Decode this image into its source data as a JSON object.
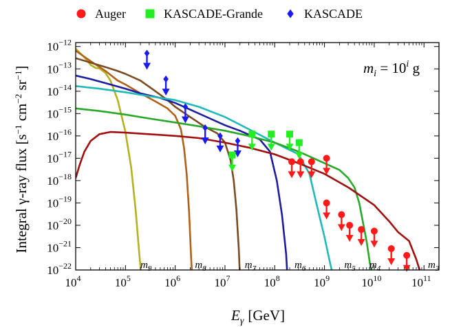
{
  "chart_data": {
    "type": "line",
    "title": "",
    "xlabel": "E_γ [GeV]",
    "xlabel_parts": {
      "symbol": "E",
      "sub": "γ",
      "unit": "[GeV]"
    },
    "ylabel": "Integral γ-ray flux [s−1 cm−2 sr−1]",
    "ylabel_parts": {
      "main": "Integral γ-ray flux [s",
      "e1": "−1",
      "mid1": " cm",
      "e2": "−2",
      "mid2": " sr",
      "e3": "−1",
      "end": "]"
    },
    "annotation": {
      "text": "m_i = 10^i g",
      "m": "m",
      "i": "i",
      "eq": " = 10",
      "exp": "i",
      "unit": " g"
    },
    "x_scale": "log",
    "y_scale": "log",
    "xlim": [
      10000,
      200000000000
    ],
    "ylim": [
      1e-22,
      1.5e-12
    ],
    "x_ticks": [
      {
        "value": 10000,
        "base": "10",
        "exp": "4"
      },
      {
        "value": 100000,
        "base": "10",
        "exp": "5"
      },
      {
        "value": 1000000,
        "base": "10",
        "exp": "6"
      },
      {
        "value": 10000000,
        "base": "10",
        "exp": "7"
      },
      {
        "value": 100000000,
        "base": "10",
        "exp": "8"
      },
      {
        "value": 1000000000,
        "base": "10",
        "exp": "9"
      },
      {
        "value": 10000000000,
        "base": "10",
        "exp": "10"
      },
      {
        "value": 100000000000,
        "base": "10",
        "exp": "11"
      }
    ],
    "y_ticks": [
      {
        "value": 1e-22,
        "base": "10",
        "exp": "−22"
      },
      {
        "value": 1e-21,
        "base": "10",
        "exp": "−21"
      },
      {
        "value": 1e-20,
        "base": "10",
        "exp": "−20"
      },
      {
        "value": 1e-19,
        "base": "10",
        "exp": "−19"
      },
      {
        "value": 1e-18,
        "base": "10",
        "exp": "−18"
      },
      {
        "value": 1e-17,
        "base": "10",
        "exp": "−17"
      },
      {
        "value": 1e-16,
        "base": "10",
        "exp": "−16"
      },
      {
        "value": 1e-15,
        "base": "10",
        "exp": "−15"
      },
      {
        "value": 1e-14,
        "base": "10",
        "exp": "−14"
      },
      {
        "value": 1e-13,
        "base": "10",
        "exp": "−13"
      },
      {
        "value": 1e-12,
        "base": "10",
        "exp": "−12"
      }
    ],
    "legend_placement": "top-center",
    "grid": false,
    "legend": [
      {
        "name": "Auger",
        "marker": "circle",
        "color": "#ff1a1a"
      },
      {
        "name": "KASCADE-Grande",
        "marker": "square",
        "color": "#22ee22"
      },
      {
        "name": "KASCADE",
        "marker": "diamond",
        "color": "#1a1aee"
      }
    ],
    "series": [
      {
        "label": "m9",
        "base": "m",
        "sub": "9",
        "color": "#b5b020",
        "label_at": 200000,
        "points": [
          [
            10000,
            8e-13
          ],
          [
            15000,
            3.3e-13
          ],
          [
            20000,
            1.5e-13
          ],
          [
            25000,
            1.1e-13
          ],
          [
            30000,
            1.05e-13
          ],
          [
            40000,
            6.5e-14
          ],
          [
            50000,
            3e-14
          ],
          [
            70000,
            4e-15
          ],
          [
            100000,
            1.5e-16
          ],
          [
            130000,
            4e-18
          ],
          [
            160000,
            5e-20
          ],
          [
            190000,
            5e-22
          ],
          [
            210000,
            5e-23
          ]
        ]
      },
      {
        "label": "m8",
        "base": "m",
        "sub": "8",
        "color": "#b06018",
        "label_at": 2500000,
        "points": [
          [
            10000,
            6.5e-13
          ],
          [
            20000,
            2.2e-13
          ],
          [
            40000,
            8e-14
          ],
          [
            70000,
            3e-14
          ],
          [
            100000,
            2e-14
          ],
          [
            200000,
            8e-15
          ],
          [
            400000,
            3.5e-15
          ],
          [
            700000,
            1.7e-15
          ],
          [
            1000000,
            8e-16
          ],
          [
            1300000,
            2e-16
          ],
          [
            1500000,
            3e-17
          ],
          [
            1700000,
            2e-18
          ],
          [
            1900000,
            4e-20
          ],
          [
            2100000,
            3e-22
          ],
          [
            2200000,
            5e-23
          ]
        ]
      },
      {
        "label": "m7",
        "base": "m",
        "sub": "7",
        "color": "#7a4a20",
        "label_at": 25000000,
        "points": [
          [
            10000,
            3e-13
          ],
          [
            20000,
            1.9e-13
          ],
          [
            40000,
            1.2e-13
          ],
          [
            70000,
            8e-14
          ],
          [
            100000,
            6e-14
          ],
          [
            200000,
            3e-14
          ],
          [
            400000,
            1e-14
          ],
          [
            700000,
            4e-15
          ],
          [
            1000000,
            2e-15
          ],
          [
            2000000,
            7e-16
          ],
          [
            4000000,
            2.5e-16
          ],
          [
            7000000,
            1.3e-16
          ],
          [
            10000000,
            5e-17
          ],
          [
            13000000,
            8e-18
          ],
          [
            15000000,
            1e-18
          ],
          [
            17000000,
            5e-20
          ],
          [
            19000000,
            8e-22
          ],
          [
            20000000,
            5e-23
          ]
        ]
      },
      {
        "label": "m6",
        "base": "m",
        "sub": "6",
        "color": "#1c1ca0",
        "label_at": 250000000,
        "points": [
          [
            10000,
            5e-14
          ],
          [
            20000,
            3.5e-14
          ],
          [
            50000,
            2e-14
          ],
          [
            100000,
            1.3e-14
          ],
          [
            200000,
            8e-15
          ],
          [
            500000,
            5e-15
          ],
          [
            1000000,
            3e-15
          ],
          [
            2000000,
            1.5e-15
          ],
          [
            5000000,
            6e-16
          ],
          [
            10000000,
            3e-16
          ],
          [
            20000000,
            1.7e-16
          ],
          [
            50000000,
            7e-17
          ],
          [
            80000000,
            2e-17
          ],
          [
            110000000,
            1e-18
          ],
          [
            140000000,
            3e-20
          ],
          [
            170000000,
            5e-22
          ],
          [
            180000000,
            5e-23
          ]
        ]
      },
      {
        "label": "m5",
        "base": "m",
        "sub": "5",
        "color": "#20b8b8",
        "label_at": 2500000000,
        "points": [
          [
            10000,
            1.7e-14
          ],
          [
            30000,
            1.3e-14
          ],
          [
            100000,
            9e-15
          ],
          [
            300000,
            6e-15
          ],
          [
            1000000,
            4e-15
          ],
          [
            3000000,
            2e-15
          ],
          [
            10000000,
            7e-16
          ],
          [
            30000000,
            2e-16
          ],
          [
            100000000,
            5e-17
          ],
          [
            300000000,
            1.5e-17
          ],
          [
            500000000,
            2e-18
          ],
          [
            700000000,
            8e-20
          ],
          [
            1000000000,
            3e-21
          ],
          [
            1300000000,
            2e-22
          ],
          [
            1500000000,
            5e-23
          ]
        ]
      },
      {
        "label": "m4",
        "base": "m",
        "sub": "4",
        "color": "#28a828",
        "label_at": 8000000000,
        "points": [
          [
            10000,
            1.7e-15
          ],
          [
            30000,
            1.3e-15
          ],
          [
            100000,
            9e-16
          ],
          [
            300000,
            6e-16
          ],
          [
            1000000,
            4e-16
          ],
          [
            3000000,
            2.7e-16
          ],
          [
            10000000,
            1.7e-16
          ],
          [
            30000000,
            1e-16
          ],
          [
            100000000,
            5e-17
          ],
          [
            300000000,
            2e-17
          ],
          [
            1000000000,
            6e-18
          ],
          [
            2000000000,
            3e-18
          ],
          [
            3000000000,
            1.3e-18
          ],
          [
            4000000000,
            5e-19
          ],
          [
            5000000000,
            1e-19
          ],
          [
            7000000000,
            2e-21
          ],
          [
            9000000000,
            5e-23
          ]
        ]
      },
      {
        "label": "m3",
        "base": "m",
        "sub": "3",
        "color": "#a00e0e",
        "label_at": 120000000000,
        "points": [
          [
            10000,
            1.3e-18
          ],
          [
            12000,
            5e-18
          ],
          [
            15000,
            2e-17
          ],
          [
            20000,
            6e-17
          ],
          [
            30000,
            1.2e-16
          ],
          [
            50000,
            1.5e-16
          ],
          [
            100000,
            1.4e-16
          ],
          [
            300000,
            1.2e-16
          ],
          [
            1000000,
            1e-16
          ],
          [
            3000000,
            8e-17
          ],
          [
            10000000,
            5e-17
          ],
          [
            30000000,
            3e-17
          ],
          [
            100000000,
            1.5e-17
          ],
          [
            300000000,
            6e-18
          ],
          [
            1000000000,
            2e-18
          ],
          [
            3000000000,
            5e-19
          ],
          [
            10000000000,
            8e-20
          ],
          [
            20000000000,
            1.5e-20
          ],
          [
            30000000000,
            5e-21
          ],
          [
            50000000000,
            2e-21
          ],
          [
            70000000000,
            3e-22
          ],
          [
            90000000000,
            5e-23
          ]
        ]
      }
    ],
    "upper_limits": [
      {
        "experiment": "KASCADE",
        "color": "#1a1aee",
        "marker": "diamond",
        "points": [
          [
            270000,
            5e-13
          ],
          [
            650000,
            3.5e-14
          ],
          [
            1600000,
            2e-15
          ],
          [
            4000000,
            2.3e-16
          ],
          [
            8000000,
            1e-16
          ],
          [
            18000000,
            6e-17
          ]
        ]
      },
      {
        "experiment": "KASCADE-Grande",
        "color": "#22ee22",
        "marker": "square",
        "points": [
          [
            14000000,
            1.4e-17
          ],
          [
            35000000,
            1.2e-16
          ],
          [
            85000000,
            1.2e-16
          ],
          [
            200000000,
            1.2e-16
          ],
          [
            310000000,
            5e-17
          ]
        ]
      },
      {
        "experiment": "Auger",
        "color": "#ff1a1a",
        "marker": "circle",
        "points": [
          [
            220000000,
            7e-18
          ],
          [
            330000000,
            7e-18
          ],
          [
            550000000,
            7e-18
          ],
          [
            1100000000,
            1e-17
          ],
          [
            1100000000,
            1e-19
          ],
          [
            2200000000,
            3e-20
          ],
          [
            3200000000,
            1e-20
          ],
          [
            5500000000,
            6.5e-21
          ],
          [
            10000000000,
            5.5e-21
          ],
          [
            22000000000,
            9e-22
          ],
          [
            45000000000,
            4.5e-22
          ]
        ]
      }
    ]
  }
}
